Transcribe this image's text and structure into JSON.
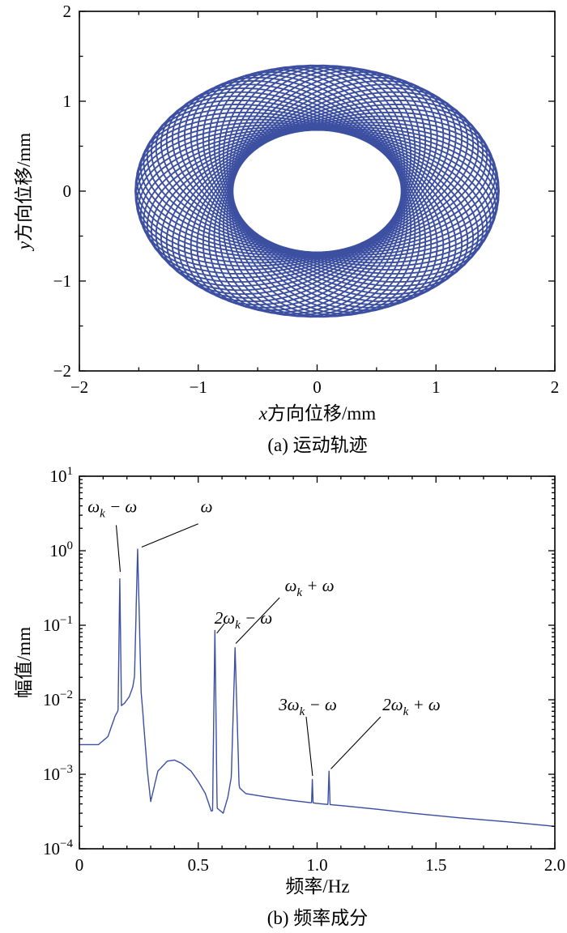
{
  "figure": {
    "line_color": "#3c4fa0",
    "axis_color": "#000000"
  },
  "chart_data": [
    {
      "id": "trajectory",
      "type": "line",
      "caption": "(a) 运动轨迹",
      "xlabel_var": "x",
      "xlabel_rest": "方向位移/mm",
      "ylabel_var": "y",
      "ylabel_rest": "方向位移/mm",
      "xlim": [
        -2,
        2
      ],
      "ylim": [
        -2,
        2
      ],
      "xticks": [
        -2,
        -1,
        0,
        1,
        2
      ],
      "xtick_labels": [
        "−2",
        "−1",
        "0",
        "1",
        "2"
      ],
      "yticks": [
        -2,
        -1,
        0,
        1,
        2
      ],
      "ytick_labels": [
        "−2",
        "−1",
        "0",
        "1",
        "2"
      ],
      "minor_step": 0.5,
      "grid": false,
      "orbit": {
        "x_forward_amp": 1.12,
        "x_backward_amp": 0.41,
        "y_forward_amp": 1.04,
        "y_backward_amp": 0.36,
        "forward_freq": 0.245,
        "backward_freq": 0.165,
        "duration": 200,
        "time_step": 0.05
      },
      "line_width": 1.9
    },
    {
      "id": "spectrum",
      "type": "line",
      "yscale": "log",
      "caption": "(b) 频率成分",
      "xlabel": "频率/Hz",
      "ylabel": "幅值/mm",
      "xlim": [
        0,
        2
      ],
      "xticks": [
        0,
        0.5,
        1,
        1.5,
        2
      ],
      "xtick_labels": [
        "0",
        "0.5",
        "1.0",
        "1.5",
        "2.0"
      ],
      "x_minor_step": 0.1,
      "ytick_exponents": [
        1,
        0,
        -1,
        -2,
        -3,
        -4
      ],
      "grid": false,
      "line_width": 1.4,
      "sample_step": 0.001,
      "peaks": [
        {
          "name": "ωk−ω",
          "freq": 0.17,
          "amp": 0.42,
          "slope": 250
        },
        {
          "name": "ω",
          "freq": 0.245,
          "amp": 1.05,
          "slope": 130
        },
        {
          "name": "2ωk−ω",
          "freq": 0.57,
          "amp": 0.085,
          "slope": 250
        },
        {
          "name": "ωk+ω",
          "freq": 0.655,
          "amp": 0.05,
          "slope": 110
        },
        {
          "name": "3ωk−ω",
          "freq": 0.98,
          "amp": 0.00085,
          "slope": 100
        },
        {
          "name": "2ωk+ω",
          "freq": 1.05,
          "amp": 0.0011,
          "slope": 100
        }
      ],
      "baseline": [
        [
          0,
          0.0025
        ],
        [
          0.08,
          0.0025
        ],
        [
          0.12,
          0.0032
        ],
        [
          0.15,
          0.006
        ],
        [
          0.17,
          0.008
        ],
        [
          0.19,
          0.009
        ],
        [
          0.21,
          0.011
        ],
        [
          0.225,
          0.015
        ],
        [
          0.24,
          0.03
        ],
        [
          0.25,
          0.03
        ],
        [
          0.265,
          0.008
        ],
        [
          0.285,
          0.0012
        ],
        [
          0.3,
          0.00043
        ],
        [
          0.33,
          0.0011
        ],
        [
          0.37,
          0.0015
        ],
        [
          0.4,
          0.00155
        ],
        [
          0.43,
          0.0014
        ],
        [
          0.47,
          0.0011
        ],
        [
          0.5,
          0.0008
        ],
        [
          0.53,
          0.00055
        ],
        [
          0.555,
          0.00032
        ],
        [
          0.58,
          0.00035
        ],
        [
          0.605,
          0.0003
        ],
        [
          0.625,
          0.0005
        ],
        [
          0.645,
          0.0012
        ],
        [
          0.655,
          0.0012
        ],
        [
          0.675,
          0.00065
        ],
        [
          0.7,
          0.00055
        ],
        [
          0.78,
          0.0005
        ],
        [
          0.88,
          0.00045
        ],
        [
          0.96,
          0.00042
        ],
        [
          1.02,
          0.0004
        ],
        [
          1.1,
          0.00038
        ],
        [
          1.25,
          0.00034
        ],
        [
          1.4,
          0.0003
        ],
        [
          1.6,
          0.00026
        ],
        [
          1.8,
          0.00023
        ],
        [
          2.0,
          0.0002
        ]
      ],
      "annotations": [
        {
          "parts": [
            {
              "t": "ω"
            },
            {
              "t": "k",
              "s": "sub"
            },
            {
              "t": " − ω"
            }
          ],
          "text_xy": [
            0.035,
            3.9
          ],
          "anchor": "start",
          "line": [
            [
              0.155,
              2.2
            ],
            [
              0.172,
              0.52
            ]
          ]
        },
        {
          "parts": [
            {
              "t": "ω"
            }
          ],
          "text_xy": [
            0.535,
            3.9
          ],
          "anchor": "middle",
          "line": [
            [
              0.5,
              2.3
            ],
            [
              0.262,
              1.12
            ]
          ]
        },
        {
          "parts": [
            {
              "t": "2ω"
            },
            {
              "t": "k",
              "s": "sub"
            },
            {
              "t": " − ω"
            }
          ],
          "text_xy": [
            0.69,
            0.125
          ],
          "anchor": "middle",
          "line": [
            [
              0.61,
              0.105
            ],
            [
              0.578,
              0.078
            ]
          ]
        },
        {
          "parts": [
            {
              "t": "ω"
            },
            {
              "t": "k",
              "s": "sub"
            },
            {
              "t": " + ω"
            }
          ],
          "text_xy": [
            0.968,
            0.34
          ],
          "anchor": "middle",
          "line": [
            [
              0.842,
              0.234
            ],
            [
              0.658,
              0.057
            ]
          ]
        },
        {
          "parts": [
            {
              "t": "3ω"
            },
            {
              "t": "k",
              "s": "sub"
            },
            {
              "t": " − ω"
            }
          ],
          "text_xy": [
            0.961,
            0.0086
          ],
          "anchor": "middle",
          "line": [
            [
              0.954,
              0.0059
            ],
            [
              0.981,
              0.00095
            ]
          ]
        },
        {
          "parts": [
            {
              "t": "2ω"
            },
            {
              "t": "k",
              "s": "sub"
            },
            {
              "t": " + ω"
            }
          ],
          "text_xy": [
            1.397,
            0.0086
          ],
          "anchor": "middle",
          "line": [
            [
              1.267,
              0.0059
            ],
            [
              1.058,
              0.00118
            ]
          ]
        }
      ]
    }
  ]
}
